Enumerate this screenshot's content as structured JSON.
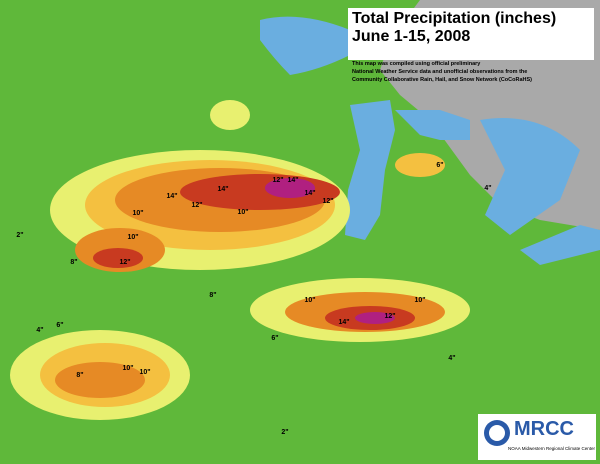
{
  "header": {
    "title": "Total Precipitation (inches)",
    "subtitle": "June 1-15, 2008",
    "note": [
      "This map was compiled using official preliminary",
      "National Weather Service data and unofficial observations from the",
      "Community  Collaborative Rain, Hail, and Snow Network (CoCoRaHS)"
    ]
  },
  "logo": {
    "name": "MRCC",
    "caption": "NOAA Midwestern Regional Climate Center"
  },
  "contour_labels": [
    "14\"",
    "12\"",
    "14\"",
    "10\"",
    "12\"",
    "14\"",
    "14\"",
    "12\"",
    "10\"",
    "10\"",
    "12\"",
    "8\"",
    "8\"",
    "10\"",
    "14\"",
    "12\"",
    "10\"",
    "8\"",
    "10\"",
    "10\"",
    "6\"",
    "4\"",
    "6\"",
    "4\"",
    "2\"",
    "4\"",
    "6\"",
    "2\""
  ]
}
